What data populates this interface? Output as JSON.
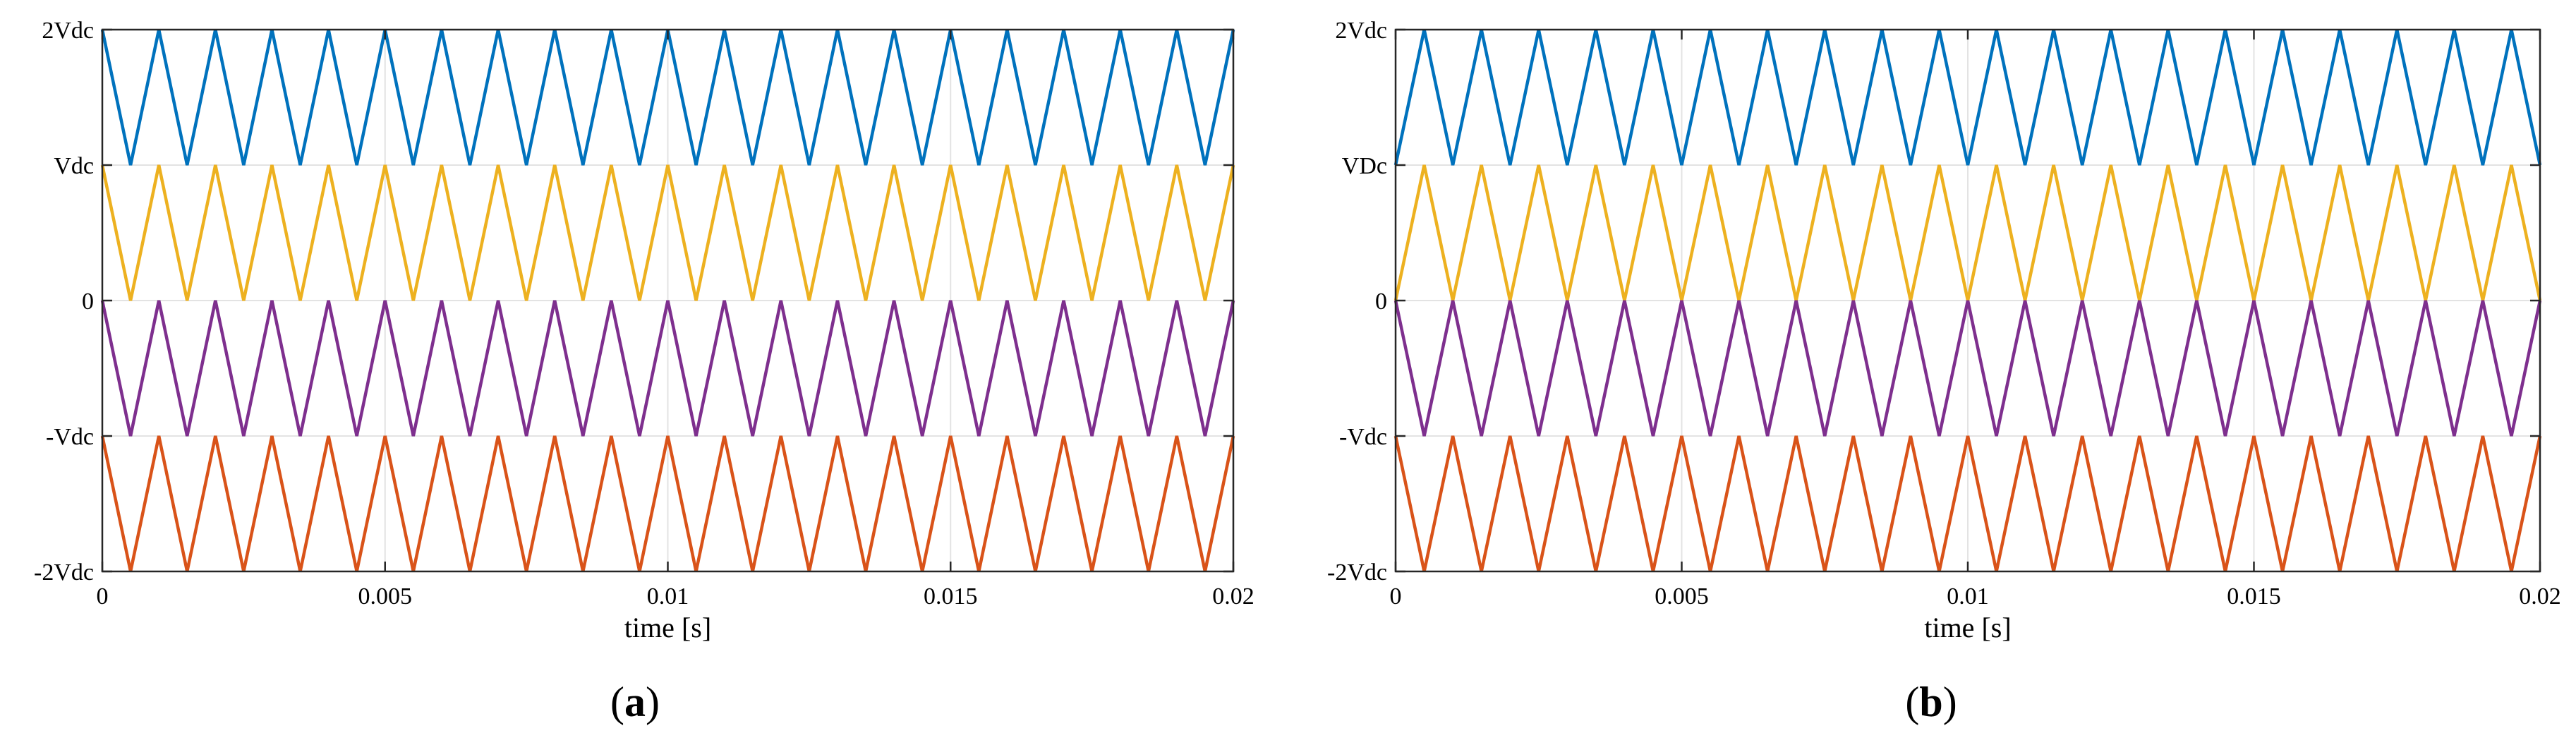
{
  "colors": {
    "blue": "#0072BD",
    "yellow": "#EDB120",
    "purple": "#7E2F8E",
    "orange": "#D95319",
    "grid": "#e3e3e3",
    "axes": "#262626"
  },
  "chart_data": [
    {
      "type": "line",
      "panel_label": "a",
      "xlabel": "time [s]",
      "xlim": [
        0,
        0.02
      ],
      "ylim": [
        -2,
        2
      ],
      "xticks": [
        0,
        0.005,
        0.01,
        0.015,
        0.02
      ],
      "xtick_labels": [
        "0",
        "0.005",
        "0.01",
        "0.015",
        "0.02"
      ],
      "yticks": [
        2,
        1,
        0,
        -1,
        -2
      ],
      "ytick_labels": [
        "2Vdc",
        "Vdc",
        "0",
        "-Vdc",
        "-2Vdc"
      ],
      "grid": true,
      "carrier_period_s": 0.001,
      "series": [
        {
          "color": "#0072BD",
          "band": [
            1,
            2
          ],
          "x": [
            0,
            0.0005,
            0.001
          ],
          "y": [
            2,
            1,
            2
          ]
        },
        {
          "color": "#EDB120",
          "band": [
            0,
            1
          ],
          "x": [
            0,
            0.0005,
            0.001
          ],
          "y": [
            1,
            0,
            1
          ]
        },
        {
          "color": "#7E2F8E",
          "band": [
            -1,
            0
          ],
          "x": [
            0,
            0.0005,
            0.001
          ],
          "y": [
            0,
            -1,
            0
          ]
        },
        {
          "color": "#D95319",
          "band": [
            -2,
            -1
          ],
          "x": [
            0,
            0.0005,
            0.001
          ],
          "y": [
            -1,
            -2,
            -1
          ]
        }
      ]
    },
    {
      "type": "line",
      "panel_label": "b",
      "xlabel": "time [s]",
      "xlim": [
        0,
        0.02
      ],
      "ylim": [
        -2,
        2
      ],
      "xticks": [
        0,
        0.005,
        0.01,
        0.015,
        0.02
      ],
      "xtick_labels": [
        "0",
        "0.005",
        "0.01",
        "0.015",
        "0.02"
      ],
      "yticks": [
        2,
        1,
        0,
        -1,
        -2
      ],
      "ytick_labels": [
        "2Vdc",
        "VDc",
        "0",
        "-Vdc",
        "-2Vdc"
      ],
      "grid": true,
      "carrier_period_s": 0.001,
      "series": [
        {
          "color": "#0072BD",
          "band": [
            1,
            2
          ],
          "x": [
            0,
            0.0005,
            0.001
          ],
          "y": [
            1,
            2,
            1
          ]
        },
        {
          "color": "#EDB120",
          "band": [
            0,
            1
          ],
          "x": [
            0,
            0.0005,
            0.001
          ],
          "y": [
            0,
            1,
            0
          ]
        },
        {
          "color": "#7E2F8E",
          "band": [
            -1,
            0
          ],
          "x": [
            0,
            0.0005,
            0.001
          ],
          "y": [
            0,
            -1,
            0
          ]
        },
        {
          "color": "#D95319",
          "band": [
            -2,
            -1
          ],
          "x": [
            0,
            0.0005,
            0.001
          ],
          "y": [
            -1,
            -2,
            -1
          ]
        }
      ]
    }
  ]
}
